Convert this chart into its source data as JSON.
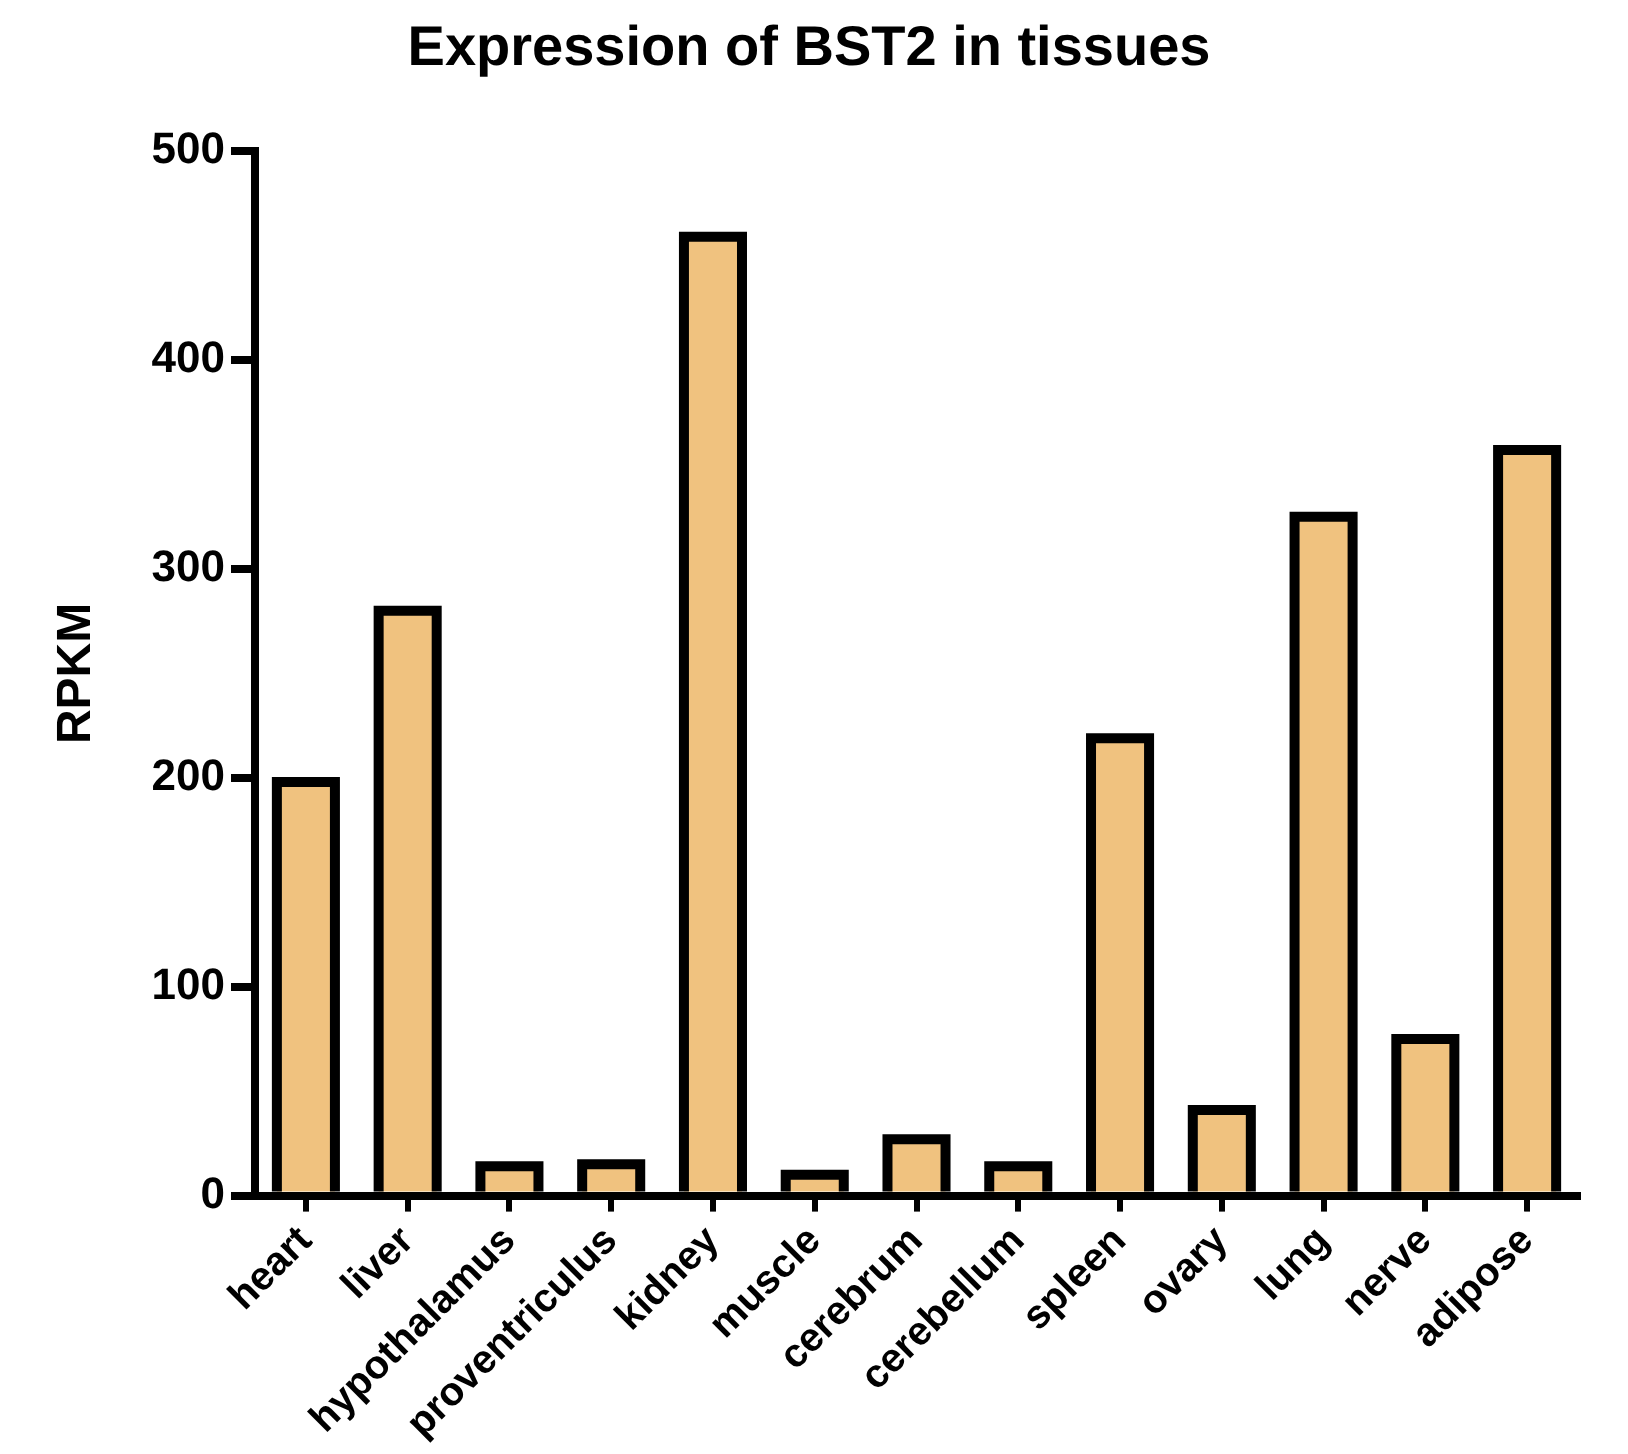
{
  "chart_data": {
    "type": "bar",
    "title": "Expression of BST2 in tissues",
    "ylabel": "RPKM",
    "categories": [
      "heart",
      "liver",
      "hypothalamus",
      "proventriculus",
      "kidney",
      "muscle",
      "cerebrum",
      "cerebellum",
      "spleen",
      "ovary",
      "lung",
      "nerve",
      "adipose"
    ],
    "values": [
      198,
      280,
      14,
      15,
      459,
      10,
      27,
      14,
      219,
      41,
      325,
      75,
      357
    ],
    "color": "#f0c27f",
    "ylim": [
      0,
      500
    ],
    "yticks": [
      0,
      100,
      200,
      300,
      400,
      500
    ],
    "grid": false,
    "legend": false
  }
}
